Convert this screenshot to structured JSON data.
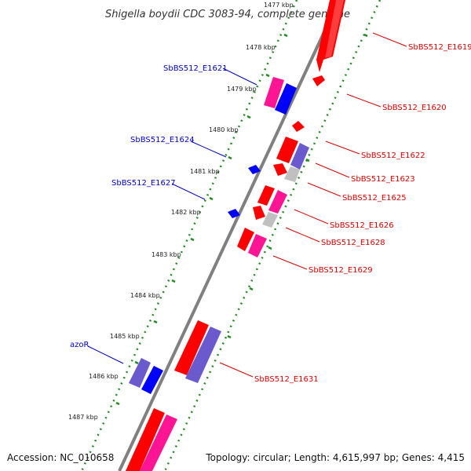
{
  "title": "Shigella boydii CDC 3083-94, complete genome",
  "footer": {
    "accession": "Accession: NC_010658",
    "topology": "Topology: circular; Length: 4,615,997 bp; Genes: 4,415"
  },
  "colors": {
    "backbone": "#808080",
    "scale_dots": "#228B22",
    "label_left": "#0000cc",
    "label_right": "#dd0000",
    "gene_red": "#ff0000",
    "gene_pink": "#ff1493",
    "gene_blue": "#0000ff",
    "gene_slate": "#6a5acd",
    "gene_gray": "#c0c0c0"
  },
  "kbp_ticks": [
    "1477 kbp",
    "1478 kbp",
    "1479 kbp",
    "1480 kbp",
    "1481 kbp",
    "1482 kbp",
    "1483 kbp",
    "1484 kbp",
    "1485 kbp",
    "1486 kbp",
    "1487 kbp"
  ],
  "labels_left": [
    {
      "text": "SbBS512_E1621"
    },
    {
      "text": "SbBS512_E1624"
    },
    {
      "text": "SbBS512_E1627"
    },
    {
      "text": "azoR"
    }
  ],
  "labels_right": [
    {
      "text": "SbBS512_E1619"
    },
    {
      "text": "SbBS512_E1620"
    },
    {
      "text": "SbBS512_E1622"
    },
    {
      "text": "SbBS512_E1623"
    },
    {
      "text": "SbBS512_E1625"
    },
    {
      "text": "SbBS512_E1626"
    },
    {
      "text": "SbBS512_E1628"
    },
    {
      "text": "SbBS512_E1629"
    },
    {
      "text": "SbBS512_E1631"
    }
  ]
}
